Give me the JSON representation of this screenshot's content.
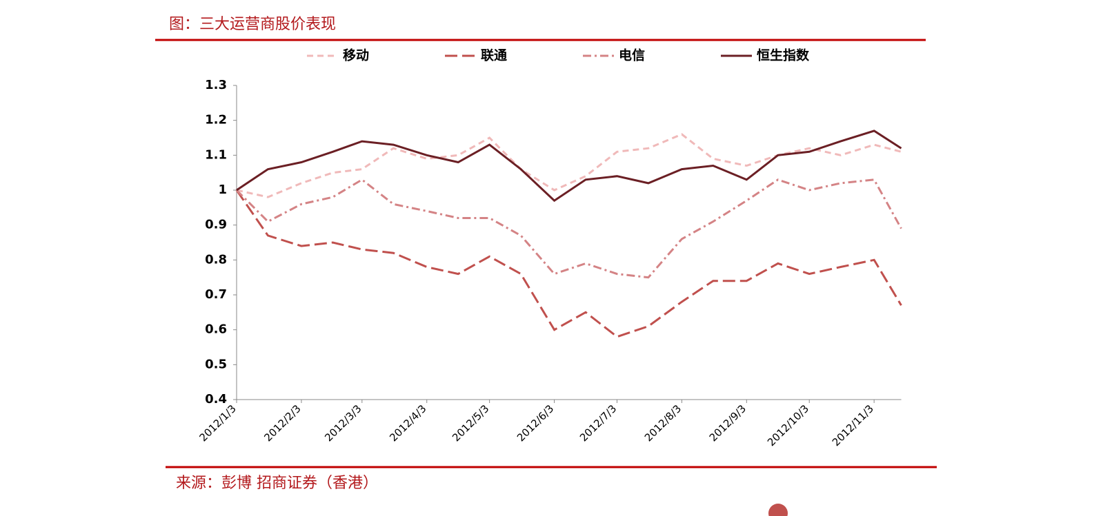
{
  "chart_data": {
    "type": "line",
    "title": "图：三大运营商股价表现",
    "source": "来源：彭博 招商证券（香港）",
    "x": [
      "2012/1/3",
      "2012/1/18",
      "2012/2/3",
      "2012/2/18",
      "2012/3/3",
      "2012/3/18",
      "2012/4/3",
      "2012/4/18",
      "2012/5/3",
      "2012/5/18",
      "2012/6/3",
      "2012/6/18",
      "2012/7/3",
      "2012/7/18",
      "2012/8/3",
      "2012/8/18",
      "2012/9/3",
      "2012/9/18",
      "2012/10/3",
      "2012/10/18",
      "2012/11/3",
      "2012/11/16"
    ],
    "xticks": [
      "2012/1/3",
      "2012/2/3",
      "2012/3/3",
      "2012/4/3",
      "2012/5/3",
      "2012/6/3",
      "2012/7/3",
      "2012/8/3",
      "2012/9/3",
      "2012/10/3",
      "2012/11/3"
    ],
    "ylim": [
      0.4,
      1.3
    ],
    "yticks": [
      0.4,
      0.5,
      0.6,
      0.7,
      0.8,
      0.9,
      1,
      1.1,
      1.2,
      1.3
    ],
    "series": [
      {
        "name": "移动",
        "color": "#f0b9b9",
        "values": [
          1.0,
          0.98,
          1.02,
          1.05,
          1.06,
          1.12,
          1.09,
          1.1,
          1.15,
          1.06,
          1.0,
          1.04,
          1.11,
          1.12,
          1.16,
          1.09,
          1.07,
          1.1,
          1.12,
          1.1,
          1.13,
          1.11
        ]
      },
      {
        "name": "联通",
        "color": "#c0504d",
        "values": [
          1.0,
          0.87,
          0.84,
          0.85,
          0.83,
          0.82,
          0.78,
          0.76,
          0.81,
          0.76,
          0.6,
          0.65,
          0.58,
          0.61,
          0.68,
          0.74,
          0.74,
          0.79,
          0.76,
          0.78,
          0.8,
          0.67
        ]
      },
      {
        "name": "电信",
        "color": "#d48385",
        "values": [
          1.0,
          0.91,
          0.96,
          0.98,
          1.03,
          0.96,
          0.94,
          0.92,
          0.92,
          0.87,
          0.76,
          0.79,
          0.76,
          0.75,
          0.86,
          0.91,
          0.97,
          1.03,
          1.0,
          1.02,
          1.03,
          0.89
        ]
      },
      {
        "name": "恒生指数",
        "color": "#6b1f24",
        "values": [
          1.0,
          1.06,
          1.08,
          1.11,
          1.14,
          1.13,
          1.1,
          1.08,
          1.13,
          1.06,
          0.97,
          1.03,
          1.04,
          1.02,
          1.06,
          1.07,
          1.03,
          1.1,
          1.11,
          1.14,
          1.17,
          1.12
        ]
      }
    ]
  }
}
